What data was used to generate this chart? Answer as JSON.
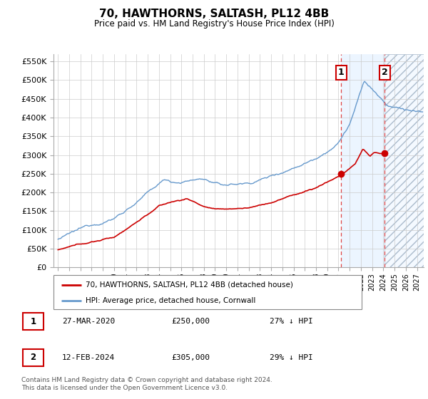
{
  "title": "70, HAWTHORNS, SALTASH, PL12 4BB",
  "subtitle": "Price paid vs. HM Land Registry's House Price Index (HPI)",
  "ylabel_ticks": [
    "£0",
    "£50K",
    "£100K",
    "£150K",
    "£200K",
    "£250K",
    "£300K",
    "£350K",
    "£400K",
    "£450K",
    "£500K",
    "£550K"
  ],
  "ytick_values": [
    0,
    50000,
    100000,
    150000,
    200000,
    250000,
    300000,
    350000,
    400000,
    450000,
    500000,
    550000
  ],
  "ylim": [
    0,
    570000
  ],
  "hpi_color": "#6699cc",
  "price_color": "#cc0000",
  "marker1_x": 2020.24,
  "marker1_price": 250000,
  "marker2_x": 2024.12,
  "marker2_price": 305000,
  "legend_label1": "70, HAWTHORNS, SALTASH, PL12 4BB (detached house)",
  "legend_label2": "HPI: Average price, detached house, Cornwall",
  "table_row1": [
    "1",
    "27-MAR-2020",
    "£250,000",
    "27% ↓ HPI"
  ],
  "table_row2": [
    "2",
    "12-FEB-2024",
    "£305,000",
    "29% ↓ HPI"
  ],
  "footnote": "Contains HM Land Registry data © Crown copyright and database right 2024.\nThis data is licensed under the Open Government Licence v3.0."
}
